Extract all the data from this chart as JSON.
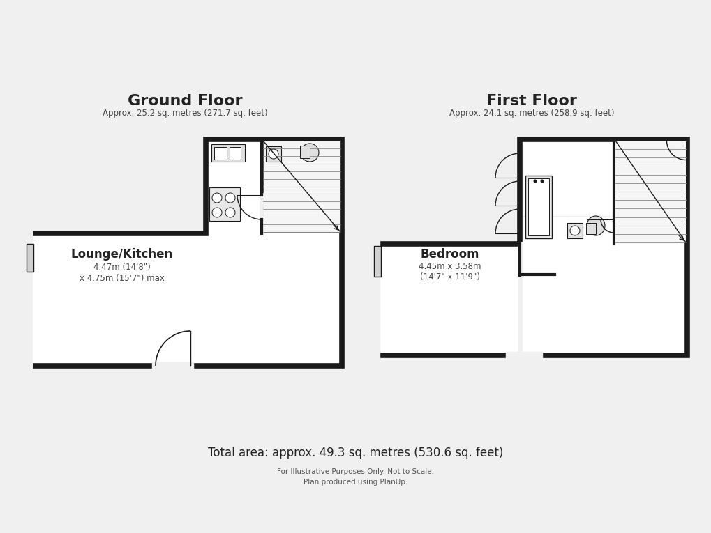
{
  "bg_color": "#f0f0f0",
  "wall_color": "#1a1a1a",
  "floor_fill": "#ffffff",
  "title_ground": "Ground Floor",
  "subtitle_ground": "Approx. 25.2 sq. metres (271.7 sq. feet)",
  "title_first": "First Floor",
  "subtitle_first": "Approx. 24.1 sq. metres (258.9 sq. feet)",
  "label_lounge": "Lounge/Kitchen",
  "dim_lounge_1": "4.47m (14'8\")",
  "dim_lounge_2": "x 4.75m (15'7\") max",
  "label_bedroom": "Bedroom",
  "dim_bedroom_1": "4.45m x 3.58m",
  "dim_bedroom_2": "(14'7\" x 11'9\")",
  "footer1": "Total area: approx. 49.3 sq. metres (530.6 sq. feet)",
  "footer2": "For Illustrative Purposes Only. Not to Scale.",
  "footer3": "Plan produced using PlanUp."
}
